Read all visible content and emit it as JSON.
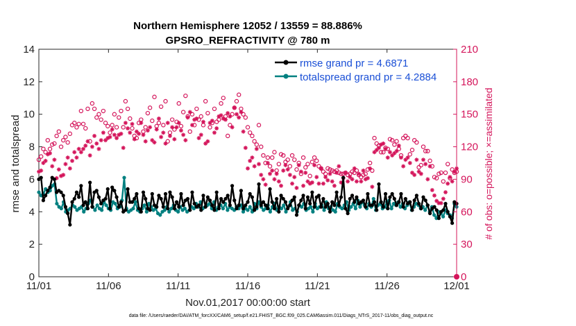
{
  "chart_data": {
    "type": "line",
    "title_line1": "Northern Hemisphere 12052 / 13559 = 88.886%",
    "title_line2": "GPSRO_REFRACTIVITY @ 780 m",
    "xlabel": "Nov.01,2017 00:00:00 start",
    "ylabel_left": "rmse and totalspread",
    "ylabel_right": "# of obs: o=possible; ×=assimilated",
    "footnote": "data file: /Users/raeder/DAI/ATM_forcXX/CAM6_setup/f.e21.FHIST_BGC.f09_025.CAM6assim.011/Diags_NTrS_2017-11/obs_diag_output.nc",
    "x_tick_labels": [
      "11/01",
      "11/06",
      "11/11",
      "11/16",
      "11/21",
      "11/26",
      "12/01"
    ],
    "x_range_days": [
      0,
      30
    ],
    "ylim_left": [
      0,
      14
    ],
    "yticks_left": [
      "0",
      "2",
      "4",
      "6",
      "8",
      "10",
      "12",
      "14"
    ],
    "ylim_right": [
      0,
      210
    ],
    "yticks_right": [
      "0",
      "30",
      "60",
      "90",
      "120",
      "150",
      "180",
      "210"
    ],
    "legend": {
      "rmse_label": "rmse grand pr = 4.6871",
      "spread_label": "totalspread grand pr = 4.2884"
    },
    "colors": {
      "rmse": "#000000",
      "spread": "#008080",
      "obs": "#d4145a",
      "legend_text": "#1a4fd6"
    },
    "series": [
      {
        "name": "rmse",
        "values": [
          6.0,
          6.1,
          4.7,
          5.0,
          5.3,
          5.5,
          6.1,
          6.0,
          5.2,
          5.3,
          5.2,
          5.0,
          4.3,
          3.9,
          3.2,
          4.6,
          4.8,
          5.2,
          4.9,
          5.6,
          4.4,
          4.6,
          4.2,
          5.8,
          4.3,
          5.2,
          5.3,
          4.9,
          4.5,
          4.7,
          4.8,
          5.4,
          4.2,
          5.5,
          5.3,
          4.9,
          4.3,
          4.6,
          4.0,
          4.1,
          5.4,
          4.6,
          4.6,
          4.8,
          5.1,
          4.2,
          4.0,
          5.2,
          4.8,
          4.2,
          4.1,
          5.1,
          4.4,
          4.3,
          5.0,
          4.8,
          4.3,
          5.1,
          4.2,
          5.2,
          4.9,
          4.2,
          4.6,
          4.3,
          5.1,
          4.4,
          4.7,
          4.8,
          4.1,
          5.2,
          4.5,
          4.3,
          4.4,
          4.1,
          5.0,
          4.3,
          4.9,
          4.7,
          4.4,
          4.1,
          5.2,
          4.2,
          4.8,
          4.6,
          4.8,
          5.0,
          4.4,
          5.6,
          4.7,
          4.2,
          4.4,
          5.3,
          4.2,
          4.4,
          4.6,
          5.1,
          4.9,
          4.1,
          4.3,
          5.7,
          4.4,
          4.6,
          4.4,
          4.2,
          5.4,
          4.6,
          4.2,
          4.8,
          4.0,
          5.0,
          4.8,
          4.6,
          4.2,
          4.4,
          4.7,
          4.9,
          3.8,
          4.4,
          4.7,
          5.0,
          4.2,
          4.9,
          4.5,
          5.2,
          4.3,
          4.9,
          5.0,
          4.3,
          4.8,
          4.3,
          4.5,
          4.0,
          4.6,
          4.4,
          5.2,
          4.4,
          4.9,
          6.1,
          4.2,
          3.9,
          4.8,
          5.0,
          4.6,
          4.9,
          4.5,
          4.6,
          4.7,
          4.3,
          5.1,
          4.4,
          4.4,
          4.6,
          4.1,
          5.7,
          4.6,
          4.3,
          5.1,
          4.2,
          4.9,
          5.1,
          4.8,
          4.4,
          4.6,
          5.1,
          4.3,
          4.8,
          4.5,
          4.6,
          4.1,
          4.7,
          5.0,
          4.5,
          4.2,
          4.9,
          4.7,
          4.4,
          3.9,
          4.2,
          4.3,
          4.1,
          3.6,
          4.0,
          4.1,
          4.5,
          4.0,
          3.7,
          3.3,
          4.6,
          4.5
        ]
      },
      {
        "name": "totalspread",
        "values": [
          5.2,
          5.0,
          5.1,
          5.4,
          5.2,
          5.3,
          5.6,
          5.7,
          4.5,
          4.3,
          4.2,
          4.6,
          4.0,
          4.1,
          4.2,
          4.4,
          4.3,
          4.1,
          4.2,
          4.3,
          4.0,
          4.2,
          4.5,
          4.7,
          4.3,
          4.1,
          4.4,
          4.2,
          4.1,
          4.6,
          4.4,
          4.2,
          4.1,
          4.6,
          4.5,
          4.2,
          4.3,
          4.7,
          6.1,
          4.2,
          4.0,
          4.1,
          4.2,
          4.6,
          4.1,
          4.0,
          4.2,
          4.4,
          4.0,
          4.5,
          4.3,
          4.1,
          4.2,
          3.9,
          3.8,
          4.0,
          4.1,
          4.3,
          4.0,
          4.2,
          4.4,
          4.1,
          4.0,
          4.3,
          4.1,
          4.2,
          4.0,
          4.1,
          4.3,
          4.2,
          4.5,
          4.3,
          4.6,
          4.2,
          4.3,
          4.4,
          4.5,
          4.2,
          4.6,
          4.1,
          4.3,
          4.4,
          4.2,
          4.5,
          4.1,
          4.3,
          4.2,
          4.1,
          4.3,
          4.2,
          4.4,
          4.0,
          4.2,
          4.1,
          4.3,
          4.0,
          4.5,
          4.2,
          4.6,
          4.3,
          4.1,
          4.2,
          4.4,
          4.0,
          4.3,
          4.5,
          4.1,
          4.3,
          4.2,
          4.4,
          4.0,
          4.3,
          4.6,
          4.1,
          4.2,
          4.0,
          4.4,
          4.3,
          4.5,
          4.1,
          4.2,
          4.3,
          4.0,
          4.5,
          4.2,
          4.3,
          4.4,
          4.1,
          4.6,
          4.2,
          4.3,
          4.1,
          4.0,
          4.5,
          4.3,
          4.2,
          4.4,
          4.6,
          4.1,
          4.3,
          4.5,
          4.2,
          4.7,
          4.3,
          4.6,
          4.4,
          4.2,
          4.5,
          4.3,
          4.8,
          4.1,
          4.4,
          4.5,
          4.2,
          4.3,
          4.6,
          4.7,
          4.2,
          4.5,
          4.4,
          4.6,
          4.3,
          4.5,
          4.2,
          4.4,
          4.6,
          4.1,
          4.3,
          4.5,
          4.4,
          4.2,
          4.3,
          4.1,
          4.4,
          4.0,
          4.3,
          3.8,
          3.6,
          4.0,
          3.9,
          3.7,
          4.1,
          3.9,
          3.8,
          3.6,
          4.5,
          4.3
        ]
      },
      {
        "name": "obs_possible",
        "axis": "right",
        "values": [
          108,
          111,
          118,
          115,
          126,
          118,
          122,
          123,
          130,
          134,
          120,
          126,
          129,
          124,
          132,
          140,
          142,
          138,
          141,
          153,
          141,
          137,
          155,
          125,
          160,
          155,
          147,
          150,
          145,
          153,
          142,
          139,
          133,
          140,
          150,
          138,
          147,
          153,
          138,
          162,
          155,
          146,
          137,
          130,
          128,
          142,
          145,
          134,
          138,
          151,
          156,
          144,
          166,
          139,
          142,
          157,
          140,
          162,
          125,
          133,
          145,
          136,
          143,
          160,
          139,
          152,
          167,
          148,
          134,
          150,
          140,
          155,
          145,
          148,
          140,
          162,
          151,
          138,
          142,
          155,
          143,
          145,
          160,
          165,
          148,
          130,
          140,
          150,
          156,
          162,
          168,
          155,
          150,
          147,
          138,
          133,
          130,
          125,
          122,
          140,
          120,
          112,
          105,
          110,
          102,
          110,
          115,
          98,
          104,
          113,
          112,
          106,
          108,
          102,
          112,
          108,
          99,
          105,
          95,
          110,
          101,
          104,
          93,
          106,
          110,
          107,
          102,
          100,
          97,
          95,
          100,
          99,
          98,
          97,
          98,
          96,
          95,
          95,
          96,
          94,
          95,
          97,
          96,
          98,
          94,
          92,
          94,
          95,
          99,
          105,
          98,
          128,
          123,
          121,
          115,
          115,
          119,
          118,
          127,
          126,
          122,
          125,
          118,
          112,
          128,
          130,
          128,
          113,
          117,
          126,
          124,
          101,
          103,
          120,
          116,
          116,
          107,
          102,
          92,
          91,
          95,
          96,
          88,
          96,
          104,
          91,
          99,
          96,
          97
        ]
      },
      {
        "name": "obs_assimilated",
        "axis": "right",
        "values": [
          97,
          98,
          105,
          107,
          113,
          114,
          102,
          108,
          91,
          99,
          93,
          94,
          104,
          110,
          100,
          107,
          115,
          110,
          118,
          115,
          118,
          121,
          125,
          112,
          120,
          130,
          123,
          118,
          126,
          133,
          126,
          128,
          129,
          136,
          131,
          128,
          131,
          132,
          119,
          142,
          137,
          133,
          141,
          127,
          134,
          132,
          142,
          131,
          125,
          135,
          138,
          126,
          124,
          136,
          146,
          129,
          133,
          123,
          142,
          130,
          138,
          127,
          138,
          142,
          135,
          131,
          126,
          147,
          152,
          140,
          145,
          146,
          128,
          131,
          143,
          123,
          125,
          142,
          144,
          133,
          137,
          148,
          149,
          146,
          145,
          151,
          148,
          138,
          156,
          150,
          147,
          152,
          134,
          119,
          100,
          107,
          110,
          102,
          118,
          104,
          94,
          90,
          85,
          105,
          95,
          98,
          90,
          95,
          88,
          84,
          98,
          103,
          99,
          94,
          86,
          92,
          82,
          103,
          97,
          84,
          96,
          88,
          86,
          87,
          103,
          92,
          86,
          100,
          86,
          92,
          89,
          95,
          88,
          84,
          96,
          102,
          87,
          91,
          96,
          88,
          92,
          90,
          100,
          88,
          95,
          88,
          98,
          90,
          91,
          100,
          83,
          115,
          117,
          119,
          122,
          123,
          118,
          110,
          115,
          112,
          114,
          116,
          121,
          110,
          102,
          108,
          110,
          105,
          96,
          94,
          108,
          97,
          95,
          108,
          104,
          90,
          102,
          80,
          75,
          70,
          68,
          68,
          72,
          78,
          86,
          92,
          88,
          97,
          100
        ]
      }
    ]
  }
}
